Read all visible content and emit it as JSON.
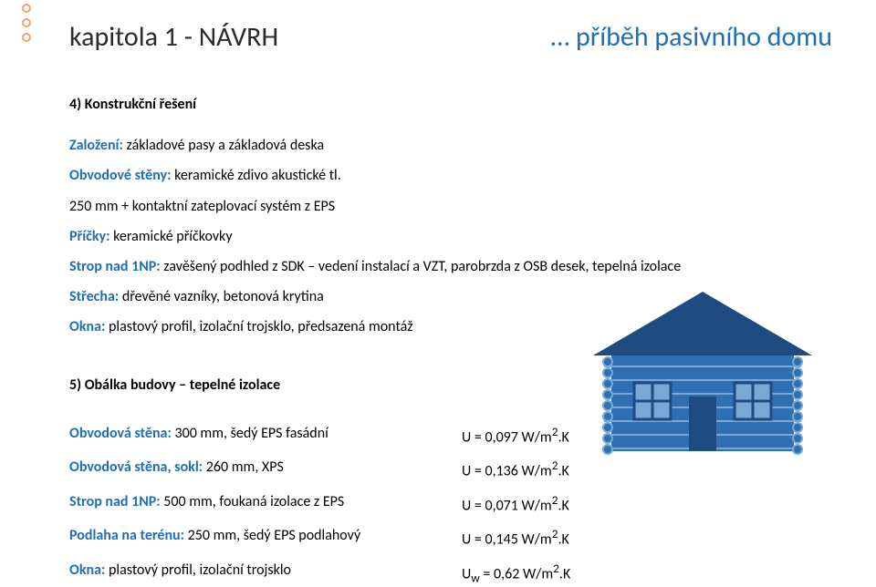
{
  "colors": {
    "chapter_color": "#2a2a2a",
    "story_color": "#1f6fb5",
    "section_title_color": "#000000",
    "label_color": "#1f6fb5",
    "value_color": "#000000",
    "circle_stroke": "#f5a46a",
    "house_fill": "#2f6fb2",
    "house_dark": "#1f4c80",
    "house_outline": "#7aa8d4"
  },
  "header": {
    "chapter_text": "kapitola 1 - NÁVRH",
    "story_text": "… příběh pasivního domu"
  },
  "section4": {
    "title": "4) Konstrukční řešení",
    "items": [
      {
        "label": "Založení:",
        "value": " základové pasy a základová deska"
      },
      {
        "label": "Obvodové stěny:",
        "value": " keramické zdivo akustické tl."
      },
      {
        "label": "",
        "value": "250 mm + kontaktní zateplovací systém z EPS"
      },
      {
        "label": "Příčky:",
        "value": " keramické příčkovky"
      },
      {
        "label": "Strop nad 1NP:",
        "value": " zavěšený podhled z SDK – vedení instalací a VZT, parobrzda z OSB desek, tepelná izolace"
      },
      {
        "label": "Střecha:",
        "value": " dřevěné vazníky, betonová krytina"
      },
      {
        "label": "Okna:",
        "value": " plastový profil, izolační trojsklo, předsazená montáž"
      }
    ]
  },
  "section5": {
    "title": "5) Obálka budovy – tepelné izolace",
    "rows": [
      {
        "label": "Obvodová stěna:",
        "value": " 300 mm, šedý EPS fasádní",
        "u": "U = 0,097 W/m",
        "sup": "2",
        "tail": ".K"
      },
      {
        "label": "Obvodová stěna, sokl:",
        "value": " 260 mm, XPS",
        "u": "U = 0,136 W/m",
        "sup": "2",
        "tail": ".K"
      },
      {
        "label": "Strop nad 1NP:",
        "value": " 500 mm, foukaná izolace z EPS",
        "u": "U = 0,071 W/m",
        "sup": "2",
        "tail": ".K"
      },
      {
        "label": "Podlaha na terénu:",
        "value": " 250 mm, šedý EPS podlahový",
        "u": "U = 0,145 W/m",
        "sup": "2",
        "tail": ".K"
      },
      {
        "label": "Okna:",
        "value": " plastový profil, izolační trojsklo",
        "u": "U",
        "sub": "w",
        "u2": " = 0,62 W/m",
        "sup": "2",
        "tail": ".K"
      }
    ]
  }
}
